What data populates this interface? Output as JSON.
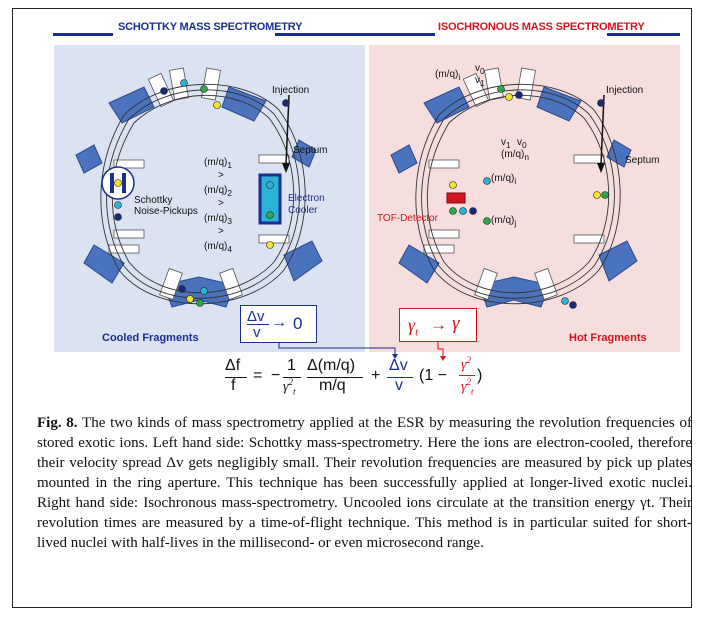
{
  "headings": {
    "left": "SCHOTTKY MASS SPECTROMETRY",
    "right": "ISOCHRONOUS  MASS SPECTROMETRY"
  },
  "left_panel": {
    "injection": "Injection",
    "septum": "Septum",
    "schottky": "Schottky",
    "noise_pickups": "Noise-Pickups",
    "electron": "Electron",
    "cooler": "Cooler",
    "mq1": "(m/q)",
    "mq1_sub": "1",
    "mq2": "(m/q)",
    "mq2_sub": "2",
    "mq3": "(m/q)",
    "mq3_sub": "3",
    "mq4": "(m/q)",
    "mq4_sub": "4",
    "gt": ">",
    "footer": "Cooled Fragments"
  },
  "right_panel": {
    "injection": "Injection",
    "septum": "Septum",
    "tof": "TOF-Detector",
    "mq_i_top": "(m/q)",
    "mq_i_top_sub": "i",
    "v0": "v",
    "v0_sub": "0",
    "v1": "v",
    "v1_sub": "1",
    "mq_n": "(m/q)",
    "mq_n_sub": "n",
    "mq_i": "(m/q)",
    "mq_i_sub": "i",
    "mq_j": "(m/q)",
    "mq_j_sub": "j",
    "footer": "Hot Fragments"
  },
  "boxes": {
    "left_num": "Δv",
    "left_den": "v",
    "left_arrow": "→",
    "left_val": "0",
    "right_gt": "γ",
    "right_sub": "t",
    "right_arrow": "→",
    "right_g": "γ"
  },
  "equation": {
    "df": "Δf",
    "f": "f",
    "eq": "=",
    "minus": "−",
    "one": "1",
    "gamma_t2": "γ",
    "dmq": "Δ(m/q)",
    "mq": "m/q",
    "plus": "+",
    "dv": "Δv",
    "v": "v",
    "paren": "(1 −",
    "g2": "γ",
    "gt2": "γ",
    "close": ")"
  },
  "caption": {
    "label": "Fig. 8.",
    "text": "The two kinds of mass spectrometry applied at the ESR by measuring the revolution frequencies of stored exotic ions. Left hand side: Schottky mass-spectrometry. Here the ions are electron-cooled, therefore their velocity spread Δv gets negligibly small. Their revolution frequencies are measured by pick up plates mounted in the ring aperture. This technique has been successfully applied at longer-lived exotic nuclei. Right hand side: Isochronous mass-spectrometry. Uncooled ions circulate at the transition energy γt. Their revolution times are measured by a time-of-flight technique. This method is in particular suited for short-lived nuclei with half-lives in the millisecond- or even microsecond range."
  },
  "colors": {
    "blue": "#1b2f8f",
    "red": "#d3141c",
    "magnet": "#4a72bd",
    "left_bg": "#dbe2f2",
    "right_bg": "#f7dede",
    "ion_yellow": "#f3e626",
    "ion_green": "#2fa84a",
    "ion_cyan": "#2bb3d6",
    "ion_navy": "#1b2a78"
  }
}
